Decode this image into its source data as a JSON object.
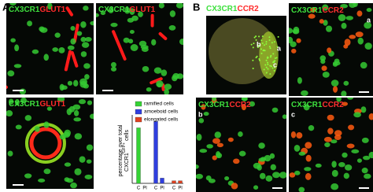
{
  "figure": {
    "panel_a": {
      "label": "A",
      "images": [
        {
          "marker": "CX3CR1",
          "target": "GLUT1"
        },
        {
          "marker": "CX3CR1",
          "target": "GLUT1"
        },
        {
          "marker": "CX3CR1",
          "target": "GLUT1"
        }
      ]
    },
    "panel_b": {
      "label": "B",
      "images": [
        {
          "marker": "CX3CR1",
          "target": "CCR2",
          "regions": [
            "b",
            "a",
            "c"
          ]
        },
        {
          "marker": "CX3CR1",
          "target": "CCR2",
          "tag": "a"
        },
        {
          "marker": "CX3CR1",
          "target": "CCR2",
          "tag": "b"
        },
        {
          "marker": "CX3CR1",
          "target": "CCR2",
          "tag": "c"
        }
      ]
    }
  },
  "chart_data": {
    "type": "bar",
    "ylabel_line1": "percentage over total",
    "ylabel_line2": "CXCR1",
    "ylabel_sup": "GFP+",
    "ylabel_end": "cells",
    "categories": [
      "C",
      "Pl"
    ],
    "series": [
      {
        "name": "ramified cells",
        "color": "#35d335",
        "values": [
          85,
          0
        ]
      },
      {
        "name": "amoeboid cells",
        "color": "#2f3fe0",
        "values": [
          95,
          8
        ]
      },
      {
        "name": "elongated cells",
        "color": "#e0401f",
        "values": [
          4,
          4
        ]
      }
    ],
    "ylim": [
      0,
      100
    ]
  }
}
